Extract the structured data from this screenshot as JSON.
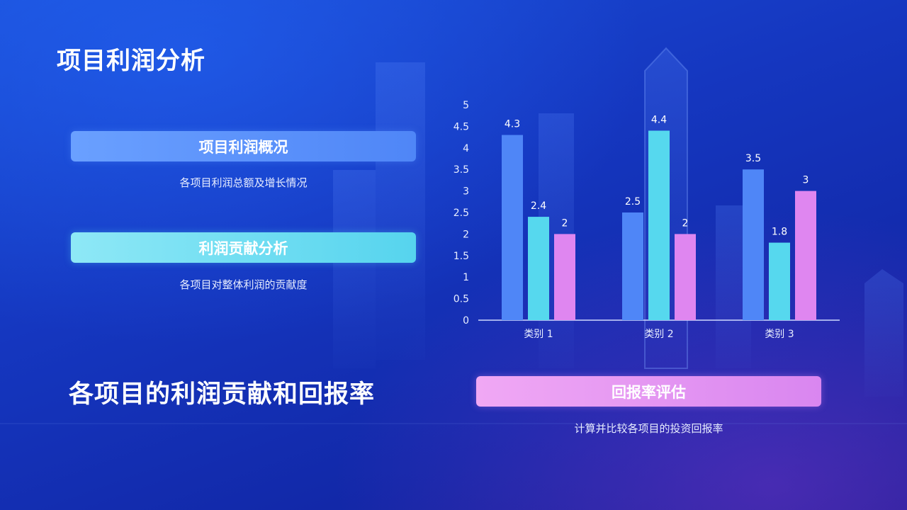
{
  "page": {
    "title": "项目利润分析"
  },
  "cards": [
    {
      "label": "项目利润概况",
      "desc": "各项目利润总额及增长情况"
    },
    {
      "label": "利润贡献分析",
      "desc": "各项目对整体利润的贡献度"
    },
    {
      "label": "回报率评估",
      "desc": "计算并比较各项目的投资回报率"
    }
  ],
  "heading": "各项目的利润贡献和回报率",
  "colors": {
    "blue": "#4f86f7",
    "cyan": "#56d8ee",
    "pink": "#df86f0"
  },
  "chart_data": {
    "type": "bar",
    "categories": [
      "类别 1",
      "类别 2",
      "类别 3"
    ],
    "series": [
      {
        "values": [
          4.3,
          2.5,
          3.5
        ],
        "color": "#4f86f7"
      },
      {
        "values": [
          2.4,
          4.4,
          1.8
        ],
        "color": "#56d8ee"
      },
      {
        "values": [
          2,
          2,
          3
        ],
        "color": "#df86f0"
      }
    ],
    "yticks": [
      "0",
      "0.5",
      "1",
      "1.5",
      "2",
      "2.5",
      "3",
      "3.5",
      "4",
      "4.5",
      "5"
    ],
    "ylim": [
      0,
      5
    ],
    "grid": false,
    "legend": "none",
    "data_labels": true
  }
}
